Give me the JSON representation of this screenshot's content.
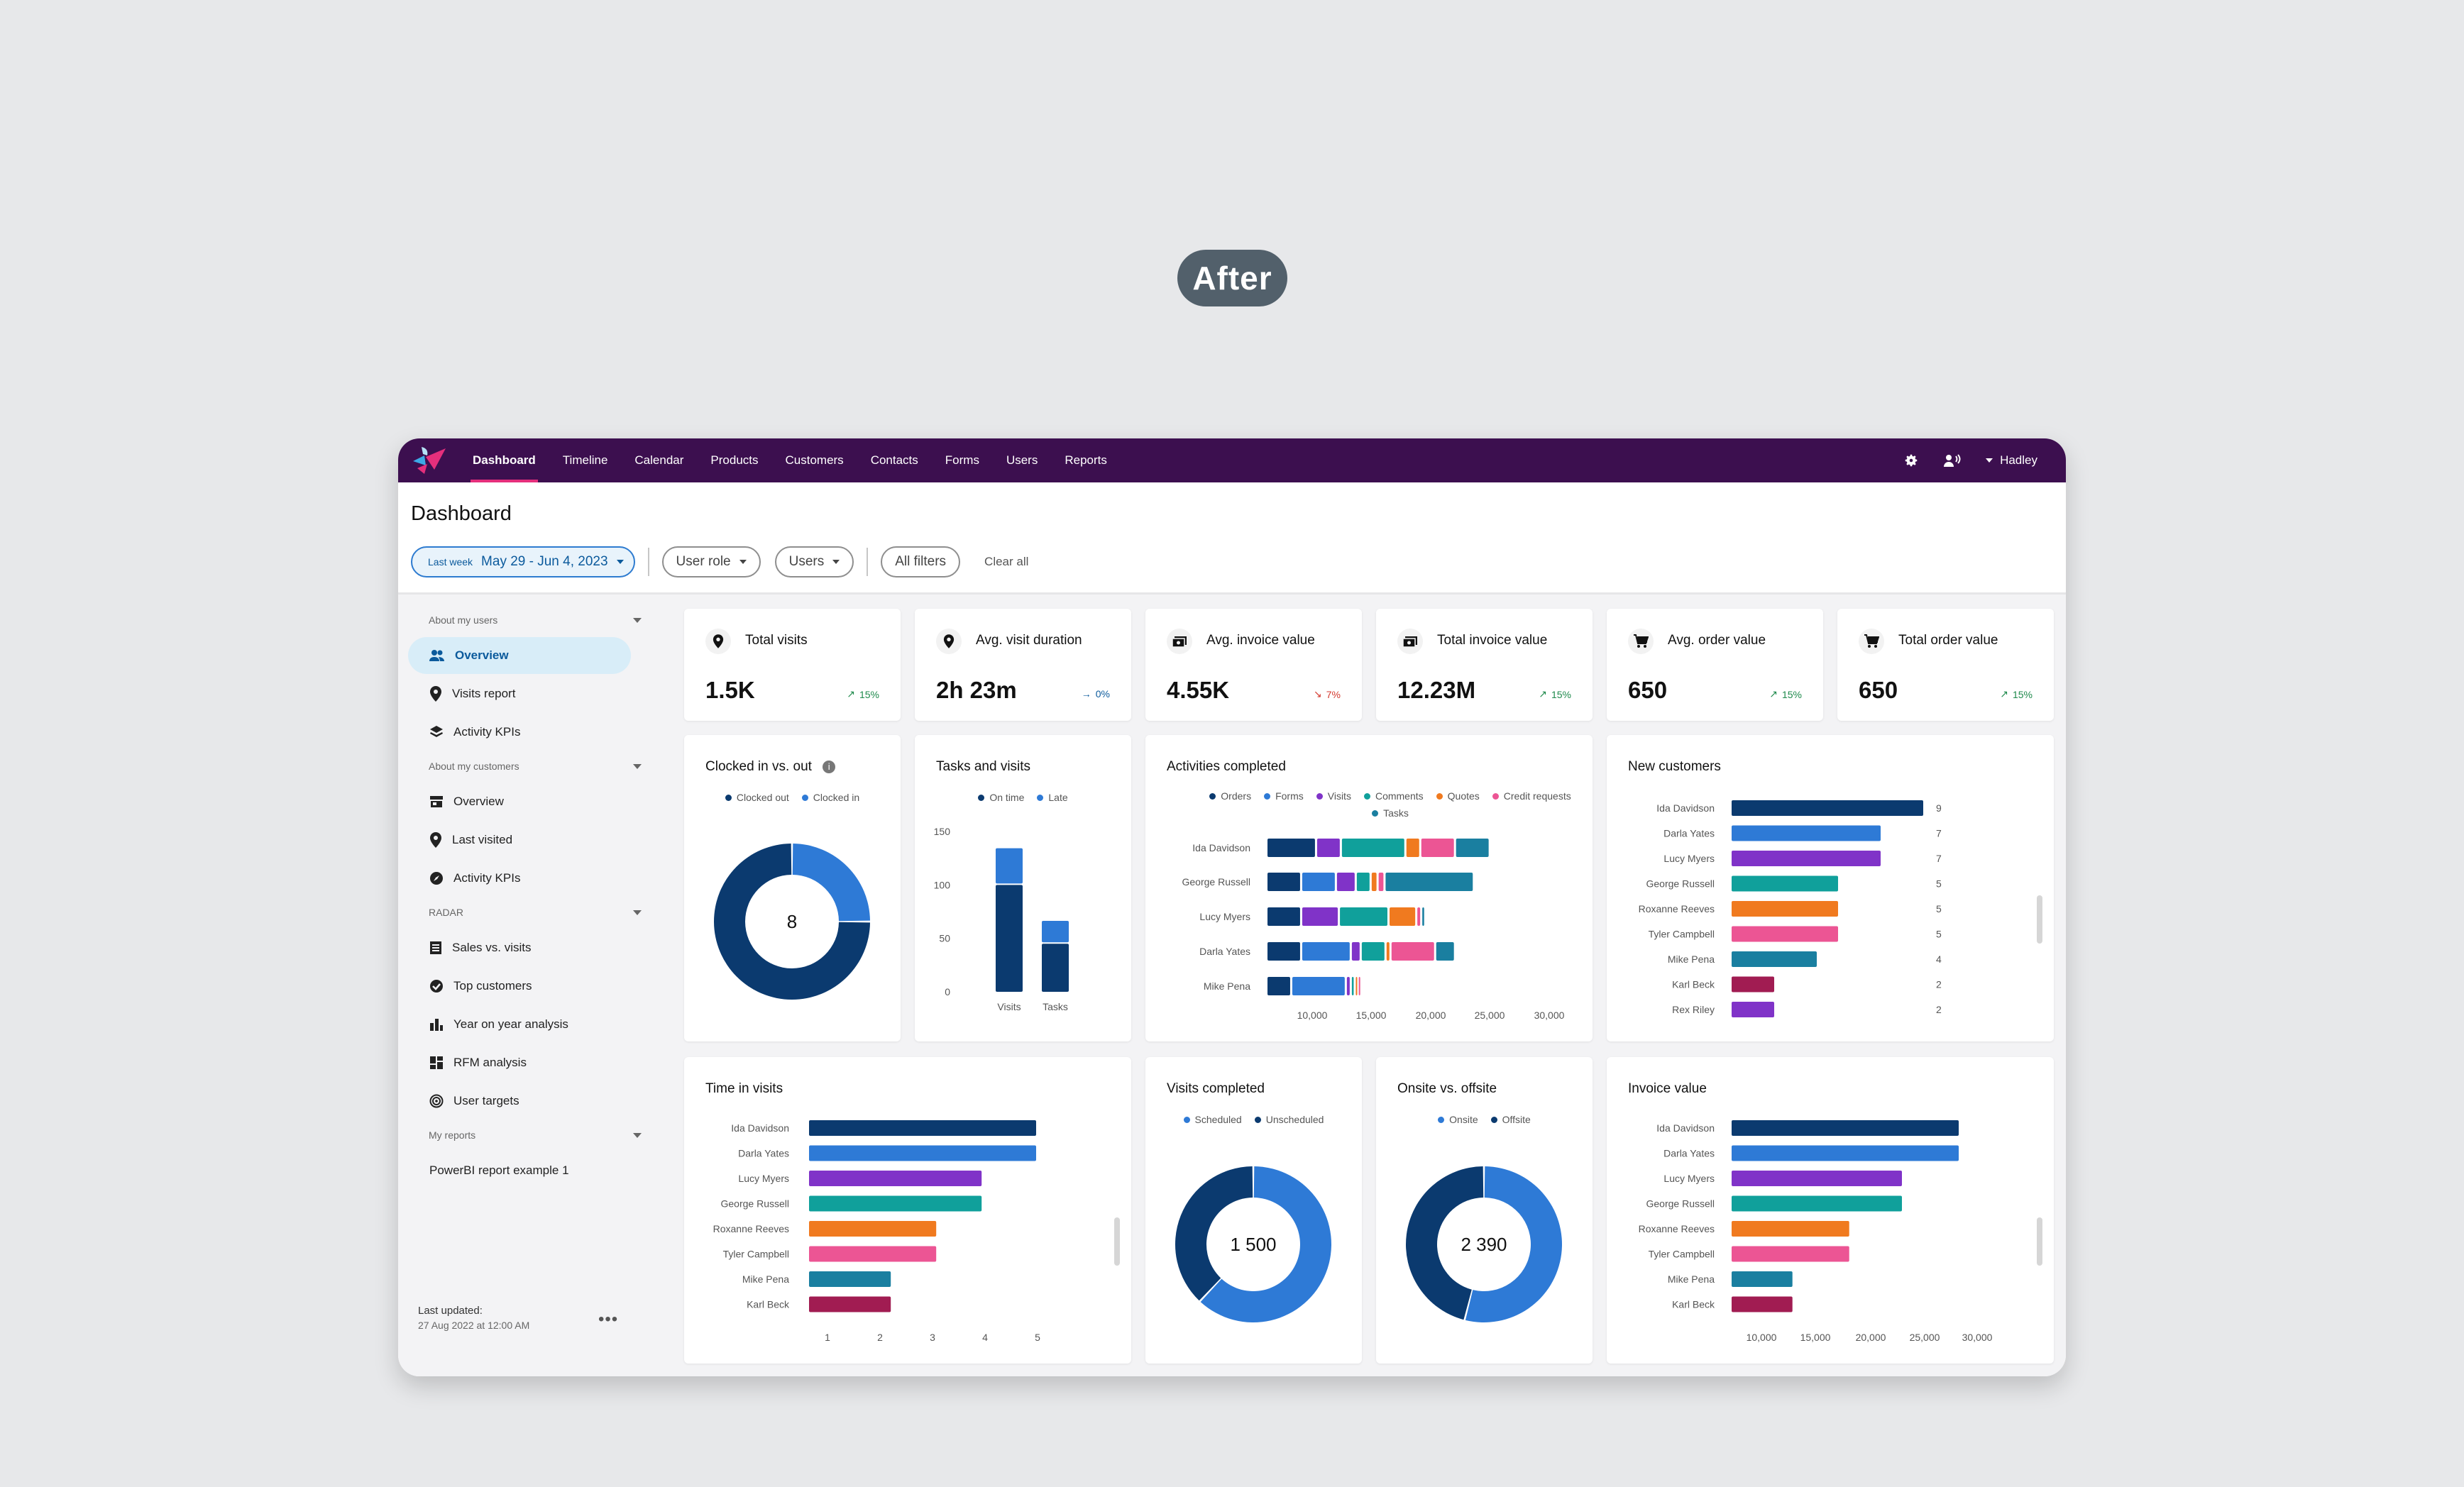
{
  "badge": "After",
  "nav": {
    "items": [
      "Dashboard",
      "Timeline",
      "Calendar",
      "Products",
      "Customers",
      "Contacts",
      "Forms",
      "Users",
      "Reports"
    ],
    "user": "Hadley"
  },
  "page": {
    "title": "Dashboard",
    "date_prefix": "Last week",
    "date_range": "May 29 - Jun 4, 2023",
    "user_role": "User role",
    "users": "Users",
    "all_filters": "All filters",
    "clear_all": "Clear all"
  },
  "sidebar": {
    "sec_users": "About my users",
    "users_items": [
      "Overview",
      "Visits report",
      "Activity KPIs"
    ],
    "sec_customers": "About my customers",
    "customer_items": [
      "Overview",
      "Last visited",
      "Activity KPIs"
    ],
    "sec_radar": "RADAR",
    "radar_items": [
      "Sales vs. visits",
      "Top customers",
      "Year on year analysis",
      "RFM analysis",
      "User targets"
    ],
    "sec_reports": "My reports",
    "report_items": [
      "PowerBI report example 1"
    ],
    "last_updated_label": "Last updated:",
    "last_updated_value": "27 Aug 2022 at 12:00 AM"
  },
  "kpis": [
    {
      "title": "Total visits",
      "value": "1.5K",
      "delta": "15%",
      "trend": "up",
      "icon": "map-pin-icon"
    },
    {
      "title": "Avg. visit duration",
      "value": "2h 23m",
      "delta": "0%",
      "trend": "flat",
      "icon": "map-pin-icon"
    },
    {
      "title": "Avg. invoice value",
      "value": "4.55K",
      "delta": "7%",
      "trend": "down",
      "icon": "invoice-icon"
    },
    {
      "title": "Total invoice value",
      "value": "12.23M",
      "delta": "15%",
      "trend": "up",
      "icon": "invoice-icon"
    },
    {
      "title": "Avg. order value",
      "value": "650",
      "delta": "15%",
      "trend": "up",
      "icon": "cart-icon"
    },
    {
      "title": "Total order value",
      "value": "650",
      "delta": "15%",
      "trend": "up",
      "icon": "cart-icon"
    }
  ],
  "colors": {
    "navy": "#0b3a6f",
    "blue": "#2e7ad6",
    "purple": "#8033c8",
    "teal": "#10a09b",
    "orange": "#f07a1f",
    "pink": "#ec5594",
    "petrol": "#1a7fa0",
    "maroon": "#a11c52",
    "up": "#1f8a4c",
    "down": "#d43a2f",
    "flat": "#0b5a9c"
  },
  "chart_data": [
    {
      "type": "pie",
      "title": "Clocked in vs. out",
      "center_label": "8",
      "series": [
        {
          "name": "Clocked out",
          "values": [
            6
          ]
        },
        {
          "name": "Clocked in",
          "values": [
            2
          ]
        }
      ]
    },
    {
      "type": "bar",
      "title": "Tasks and visits",
      "categories": [
        "Visits",
        "Tasks"
      ],
      "series": [
        {
          "name": "On time",
          "values": [
            100,
            45
          ]
        },
        {
          "name": "Late",
          "values": [
            35,
            22
          ]
        }
      ],
      "yticks": [
        "0",
        "50",
        "100",
        "150"
      ],
      "ylim": [
        0,
        150
      ]
    },
    {
      "type": "bar",
      "title": "Activities completed",
      "orientation": "horizontal",
      "categories": [
        "Ida Davidson",
        "George Russell",
        "Lucy Myers",
        "Darla Yates",
        "Mike Pena"
      ],
      "series": [
        {
          "name": "Orders",
          "values": [
            5000,
            3500,
            3500,
            3500,
            2500
          ]
        },
        {
          "name": "Forms",
          "values": [
            0,
            3500,
            0,
            5000,
            5500
          ]
        },
        {
          "name": "Visits",
          "values": [
            2500,
            2000,
            3800,
            1000,
            500
          ]
        },
        {
          "name": "Comments",
          "values": [
            6500,
            1500,
            5000,
            2500,
            400
          ]
        },
        {
          "name": "Quotes",
          "values": [
            1500,
            700,
            2800,
            500,
            300
          ]
        },
        {
          "name": "Credit requests",
          "values": [
            3500,
            700,
            500,
            4500,
            300
          ]
        },
        {
          "name": "Tasks",
          "values": [
            3500,
            9000,
            400,
            2000,
            0
          ]
        }
      ],
      "xticks": [
        "10,000",
        "15,000",
        "20,000",
        "25,000",
        "30,000"
      ],
      "xlim": [
        0,
        30000
      ]
    },
    {
      "type": "bar",
      "title": "New customers",
      "orientation": "horizontal",
      "categories": [
        "Ida Davidson",
        "Darla Yates",
        "Lucy Myers",
        "George Russell",
        "Roxanne Reeves",
        "Tyler Campbell",
        "Mike Pena",
        "Karl Beck",
        "Rex Riley"
      ],
      "values": [
        9,
        7,
        7,
        5,
        5,
        5,
        4,
        2,
        2
      ]
    },
    {
      "type": "bar",
      "title": "Time in visits",
      "orientation": "horizontal",
      "categories": [
        "Ida Davidson",
        "Darla Yates",
        "Lucy Myers",
        "George Russell",
        "Roxanne Reeves",
        "Tyler Campbell",
        "Mike Pena",
        "Karl Beck"
      ],
      "values": [
        5,
        5,
        3.8,
        3.8,
        2.8,
        2.8,
        1.8,
        1.8
      ],
      "xticks": [
        "1",
        "2",
        "3",
        "4",
        "5"
      ],
      "xlim": [
        0.5,
        5
      ]
    },
    {
      "type": "pie",
      "title": "Visits completed",
      "center_label": "1 500",
      "series": [
        {
          "name": "Scheduled",
          "values": [
            62
          ]
        },
        {
          "name": "Unscheduled",
          "values": [
            38
          ]
        }
      ]
    },
    {
      "type": "pie",
      "title": "Onsite vs. offsite",
      "center_label": "2 390",
      "series": [
        {
          "name": "Onsite",
          "values": [
            54
          ]
        },
        {
          "name": "Offsite",
          "values": [
            46
          ]
        }
      ]
    },
    {
      "type": "bar",
      "title": "Invoice value",
      "orientation": "horizontal",
      "categories": [
        "Ida Davidson",
        "Darla Yates",
        "Lucy Myers",
        "George Russell",
        "Roxanne Reeves",
        "Tyler Campbell",
        "Mike Pena",
        "Karl Beck"
      ],
      "values": [
        28000,
        28000,
        21000,
        21000,
        14500,
        14500,
        7500,
        7500
      ],
      "xticks": [
        "10,000",
        "15,000",
        "20,000",
        "25,000",
        "30,000"
      ],
      "xlim": [
        0,
        30000
      ]
    }
  ]
}
